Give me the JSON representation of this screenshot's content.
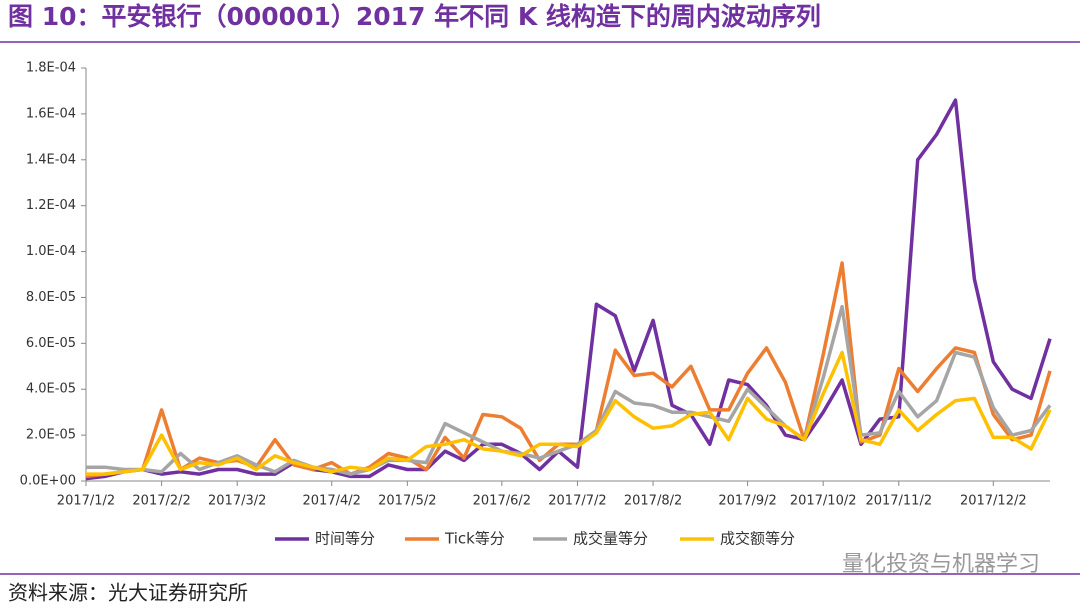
{
  "title": "图 10：平安银行（000001）2017 年不同 K 线构造下的周内波动序列",
  "source": "资料来源：光大证券研究所",
  "watermark": "量化投资与机器学习",
  "chart_data": {
    "type": "line",
    "categories": [
      "2017/1/2",
      null,
      null,
      null,
      "2017/2/2",
      null,
      null,
      null,
      "2017/3/2",
      null,
      null,
      null,
      null,
      "2017/4/2",
      null,
      null,
      null,
      "2017/5/2",
      null,
      null,
      null,
      null,
      "2017/6/2",
      null,
      null,
      null,
      "2017/7/2",
      null,
      null,
      null,
      "2017/8/2",
      null,
      null,
      null,
      null,
      "2017/9/2",
      null,
      null,
      null,
      "2017/10/2",
      null,
      null,
      null,
      "2017/11/2",
      null,
      null,
      null,
      null,
      "2017/12/2",
      null,
      null,
      null
    ],
    "series": [
      {
        "name": "时间等分",
        "color": "#7030a0",
        "values": [
          1e-06,
          2e-06,
          4e-06,
          5e-06,
          3e-06,
          4e-06,
          3e-06,
          5e-06,
          5e-06,
          3e-06,
          3e-06,
          8e-06,
          5e-06,
          4e-06,
          2e-06,
          2e-06,
          7e-06,
          5e-06,
          5e-06,
          1.3e-05,
          9e-06,
          1.6e-05,
          1.6e-05,
          1.2e-05,
          5e-06,
          1.3e-05,
          6e-06,
          7.7e-05,
          7.2e-05,
          4.8e-05,
          7e-05,
          3.3e-05,
          2.9e-05,
          1.6e-05,
          4.4e-05,
          4.2e-05,
          3.3e-05,
          2e-05,
          1.8e-05,
          3e-05,
          4.4e-05,
          1.6e-05,
          2.7e-05,
          2.8e-05,
          0.00014,
          0.000151,
          0.000166,
          8.8e-05,
          5.2e-05,
          4e-05,
          3.6e-05,
          6.2e-05
        ]
      },
      {
        "name": "Tick等分",
        "color": "#ed7d31",
        "values": [
          2e-06,
          3e-06,
          4e-06,
          5e-06,
          3.1e-05,
          5e-06,
          1e-05,
          8e-06,
          9e-06,
          6e-06,
          1.8e-05,
          7e-06,
          5e-06,
          8e-06,
          3e-06,
          6e-06,
          1.2e-05,
          1e-05,
          5e-06,
          1.9e-05,
          1e-05,
          2.9e-05,
          2.8e-05,
          2.3e-05,
          9e-06,
          1.6e-05,
          1.6e-05,
          2.2e-05,
          5.7e-05,
          4.6e-05,
          4.7e-05,
          4.1e-05,
          5e-05,
          3.1e-05,
          3.1e-05,
          4.7e-05,
          5.8e-05,
          4.3e-05,
          1.8e-05,
          5.5e-05,
          9.5e-05,
          1.7e-05,
          2e-05,
          4.9e-05,
          3.9e-05,
          4.9e-05,
          5.8e-05,
          5.6e-05,
          2.9e-05,
          1.8e-05,
          2e-05,
          4.8e-05
        ]
      },
      {
        "name": "成交量等分",
        "color": "#a5a5a5",
        "values": [
          6e-06,
          6e-06,
          5e-06,
          5e-06,
          4e-06,
          1.2e-05,
          5e-06,
          8e-06,
          1.1e-05,
          7e-06,
          4e-06,
          9e-06,
          6e-06,
          5e-06,
          3e-06,
          5e-06,
          9e-06,
          9e-06,
          8e-06,
          2.5e-05,
          2.1e-05,
          1.7e-05,
          1.3e-05,
          1.2e-05,
          1e-05,
          1.3e-05,
          1.6e-05,
          2.2e-05,
          3.9e-05,
          3.4e-05,
          3.3e-05,
          3e-05,
          3e-05,
          2.8e-05,
          2.6e-05,
          4e-05,
          3.2e-05,
          2.4e-05,
          1.8e-05,
          4.5e-05,
          7.6e-05,
          2e-05,
          2.1e-05,
          3.9e-05,
          2.8e-05,
          3.5e-05,
          5.6e-05,
          5.4e-05,
          3.2e-05,
          2e-05,
          2.2e-05,
          3.3e-05
        ]
      },
      {
        "name": "成交额等分",
        "color": "#ffc000",
        "values": [
          3e-06,
          3e-06,
          4e-06,
          5e-06,
          2e-05,
          5e-06,
          8e-06,
          7e-06,
          1e-05,
          5e-06,
          1.1e-05,
          8e-06,
          6e-06,
          4e-06,
          6e-06,
          5e-06,
          1e-05,
          9e-06,
          1.5e-05,
          1.6e-05,
          1.8e-05,
          1.4e-05,
          1.3e-05,
          1.1e-05,
          1.6e-05,
          1.6e-05,
          1.5e-05,
          2.1e-05,
          3.5e-05,
          2.8e-05,
          2.3e-05,
          2.4e-05,
          2.9e-05,
          3e-05,
          1.8e-05,
          3.6e-05,
          2.7e-05,
          2.4e-05,
          1.8e-05,
          3.8e-05,
          5.6e-05,
          1.8e-05,
          1.6e-05,
          3.1e-05,
          2.2e-05,
          2.9e-05,
          3.5e-05,
          3.6e-05,
          1.9e-05,
          1.9e-05,
          1.4e-05,
          3.1e-05
        ]
      }
    ],
    "ylim": [
      0,
      0.00018
    ],
    "yticks": [
      {
        "value": 0,
        "label": "0.0E+00"
      },
      {
        "value": 2e-05,
        "label": "2.0E-05"
      },
      {
        "value": 4e-05,
        "label": "4.0E-05"
      },
      {
        "value": 6e-05,
        "label": "6.0E-05"
      },
      {
        "value": 8e-05,
        "label": "8.0E-05"
      },
      {
        "value": 0.0001,
        "label": "1.0E-04"
      },
      {
        "value": 0.00012,
        "label": "1.2E-04"
      },
      {
        "value": 0.00014,
        "label": "1.4E-04"
      },
      {
        "value": 0.00016,
        "label": "1.6E-04"
      },
      {
        "value": 0.00018,
        "label": "1.8E-04"
      }
    ],
    "grid": false,
    "legend": "bottom"
  }
}
